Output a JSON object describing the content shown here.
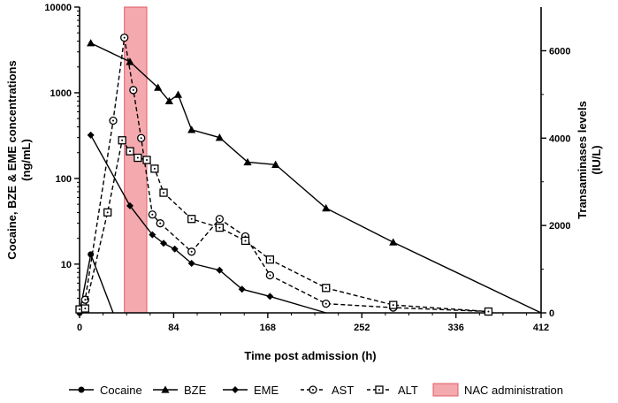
{
  "chart_data": {
    "type": "line",
    "title": "",
    "xlabel": "Time post admission (h)",
    "ylabel_left": "Cocaine, BZE & EME concentrations (ng/mL)",
    "ylabel_right": "Transaminases levels (IU/L)",
    "xlim": [
      0,
      412
    ],
    "ylim_left": [
      2.7,
      10000
    ],
    "ylim_left_scale": "log",
    "ylim_right": [
      0,
      7000
    ],
    "x_ticks": [
      0,
      84,
      168,
      252,
      336,
      412
    ],
    "x_tick_labels": [
      "0",
      "84",
      "168",
      "252",
      "336",
      "412"
    ],
    "y_left_ticks": [
      10,
      100,
      1000,
      10000
    ],
    "y_left_tick_labels": [
      "10",
      "100",
      "1000",
      "10000"
    ],
    "y_right_ticks": [
      0,
      2000,
      4000,
      6000
    ],
    "y_right_tick_labels": [
      "0",
      "2000",
      "4000",
      "6000"
    ],
    "shaded_region": {
      "name": "NAC administration",
      "x": [
        40,
        60
      ],
      "color": "#f4a9ae"
    },
    "grid": false,
    "legend_position": "bottom",
    "series": [
      {
        "name": "Cocaine",
        "axis": "left",
        "marker": "circle-filled",
        "line": "solid",
        "x": [
          0,
          10,
          30
        ],
        "y": [
          2.7,
          13,
          2.7
        ]
      },
      {
        "name": "BZE",
        "axis": "left",
        "marker": "triangle-filled",
        "line": "solid",
        "x": [
          10,
          45,
          70,
          80,
          88,
          100,
          125,
          150,
          175,
          220,
          280,
          412
        ],
        "y": [
          3800,
          2300,
          1150,
          800,
          950,
          370,
          300,
          155,
          145,
          45,
          18,
          2.7
        ]
      },
      {
        "name": "EME",
        "axis": "left",
        "marker": "diamond-filled",
        "line": "solid",
        "x": [
          10,
          45,
          65,
          75,
          85,
          100,
          125,
          145,
          170,
          220
        ],
        "y": [
          320,
          48,
          22,
          17.5,
          15,
          10.2,
          8.5,
          5.1,
          4.2,
          2.7
        ]
      },
      {
        "name": "AST",
        "axis": "right",
        "marker": "circle-open-dot",
        "line": "dashed",
        "x": [
          0,
          5,
          30,
          40,
          48,
          55,
          65,
          72,
          100,
          125,
          148,
          170,
          220,
          280,
          365
        ],
        "y": [
          80,
          300,
          4400,
          6300,
          5100,
          4000,
          2250,
          2050,
          1400,
          2150,
          1750,
          860,
          210,
          120,
          30
        ]
      },
      {
        "name": "ALT",
        "axis": "right",
        "marker": "square-open-dot",
        "line": "dashed",
        "x": [
          0,
          5,
          25,
          38,
          45,
          52,
          60,
          67,
          75,
          100,
          125,
          148,
          170,
          220,
          280,
          365
        ],
        "y": [
          80,
          100,
          2300,
          3950,
          3700,
          3550,
          3500,
          3300,
          2750,
          2150,
          1950,
          1650,
          1220,
          570,
          180,
          30
        ]
      }
    ]
  }
}
